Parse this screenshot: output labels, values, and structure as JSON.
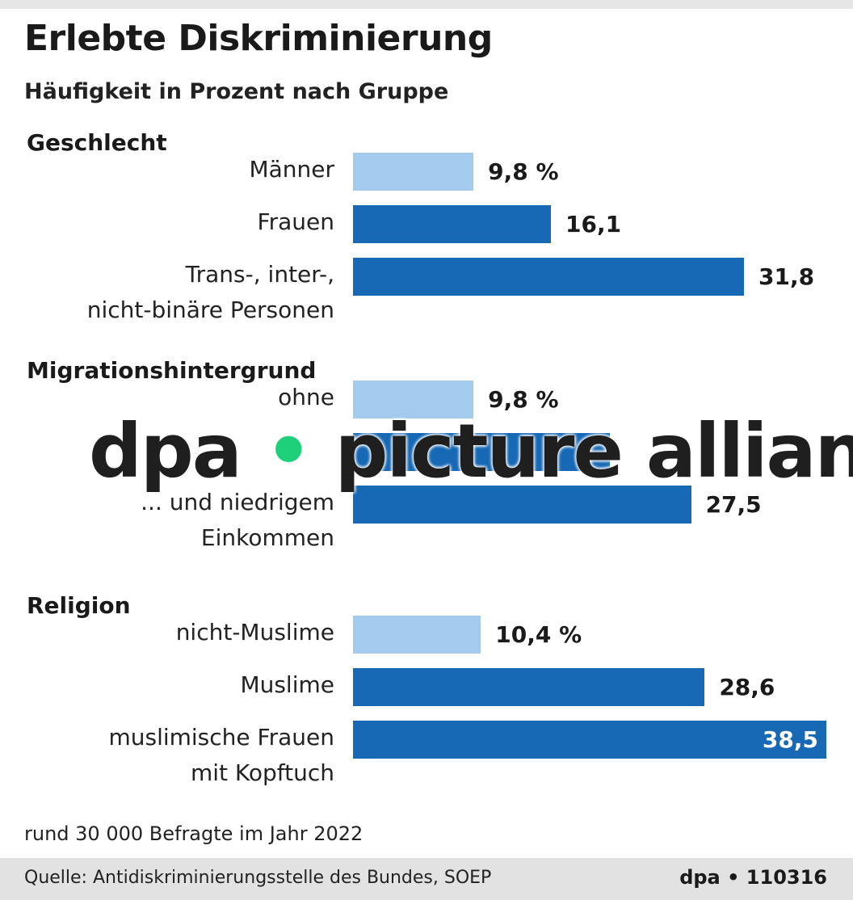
{
  "chart_data": {
    "type": "bar",
    "orientation": "horizontal",
    "title": "Erlebte Diskriminierung",
    "subtitle": "Häufigkeit in Prozent nach Gruppe",
    "xlim": [
      0,
      38.5
    ],
    "unit": "%",
    "colors": {
      "reference": "#a3cbee",
      "group": "#1769b5"
    },
    "groups": [
      {
        "name": "Geschlecht",
        "items": [
          {
            "label": [
              "Männer"
            ],
            "value": 9.8,
            "text": "9,8 %",
            "ref": true
          },
          {
            "label": [
              "Frauen"
            ],
            "value": 16.1,
            "text": "16,1"
          },
          {
            "label": [
              "Trans-, inter-,",
              "nicht-binäre Personen"
            ],
            "value": 31.8,
            "text": "31,8"
          }
        ]
      },
      {
        "name": "Migrationshintergrund",
        "items": [
          {
            "label": [
              "ohne"
            ],
            "value": 9.8,
            "text": "9,8 %",
            "ref": true
          },
          {
            "label": [
              ""
            ],
            "value": 20.9,
            "text": ""
          },
          {
            "label": [
              "... und niedrigem",
              "Einkommen"
            ],
            "value": 27.5,
            "text": "27,5"
          }
        ]
      },
      {
        "name": "Religion",
        "items": [
          {
            "label": [
              "nicht-Muslime"
            ],
            "value": 10.4,
            "text": "10,4 %",
            "ref": true
          },
          {
            "label": [
              "Muslime"
            ],
            "value": 28.6,
            "text": "28,6"
          },
          {
            "label": [
              "muslimische Frauen",
              "mit Kopftuch"
            ],
            "value": 38.5,
            "text": "38,5",
            "inside": true
          }
        ]
      }
    ],
    "note": "rund 30 000 Befragte im Jahr 2022"
  },
  "footer": {
    "source": "Quelle: Antidiskriminierungsstelle des Bundes, SOEP",
    "credit": "dpa • 110316"
  },
  "watermark": {
    "left": "dpa",
    "right": "picture alliance"
  }
}
